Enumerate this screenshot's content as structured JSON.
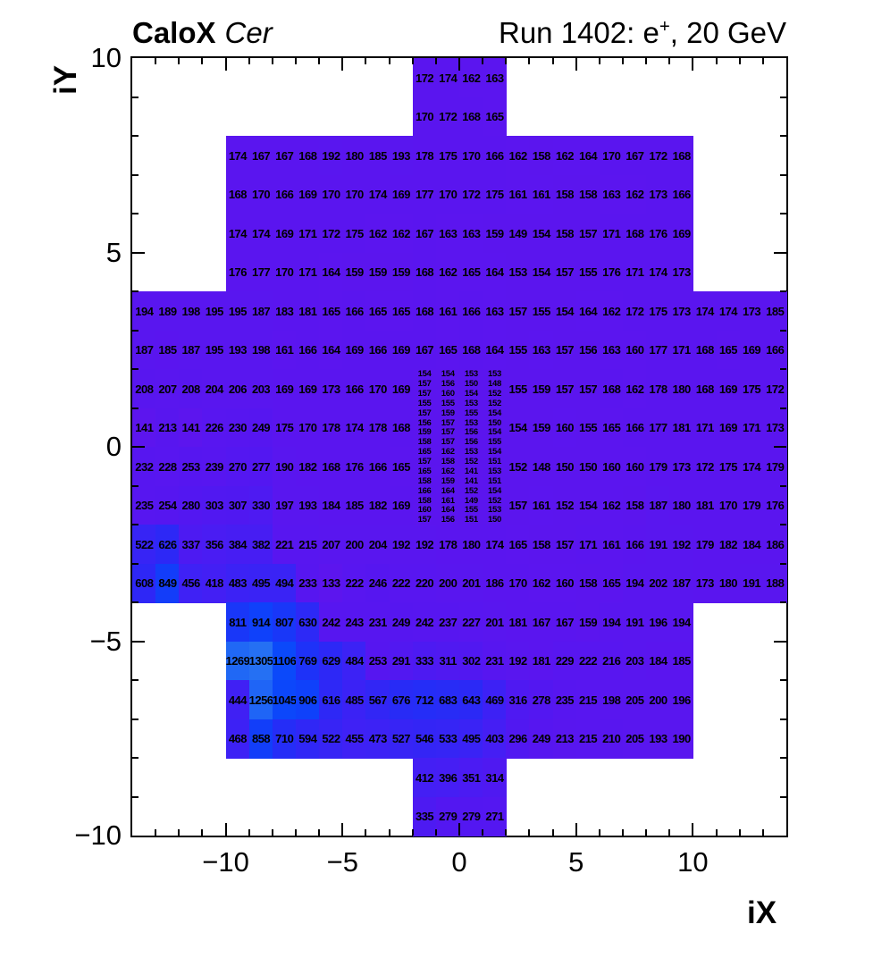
{
  "header": {
    "title_bold": "CaloX",
    "title_italic": "Cer",
    "run_title": {
      "prefix": "Run 1402: e",
      "sup": "+",
      "suffix": ", 20 GeV"
    }
  },
  "chart_data": {
    "type": "heatmap",
    "xlabel": "iX",
    "ylabel": "iY",
    "xlim": [
      -14,
      14
    ],
    "ylim": [
      -10,
      10
    ],
    "xticks": [
      -10,
      -5,
      0,
      5,
      10
    ],
    "yticks": [
      -10,
      -5,
      0,
      5,
      10
    ],
    "minor_tick_step": 1,
    "background": "#ffffff",
    "frame_color": "#000000",
    "color_stops": [
      [
        133,
        "#5c15ee"
      ],
      [
        240,
        "#5716f0"
      ],
      [
        300,
        "#5118f1"
      ],
      [
        360,
        "#4a1cf3"
      ],
      [
        420,
        "#431ff4"
      ],
      [
        480,
        "#3c22f5"
      ],
      [
        540,
        "#3525f5"
      ],
      [
        600,
        "#2f27f6"
      ],
      [
        660,
        "#2a2af6"
      ],
      [
        720,
        "#242ef7"
      ],
      [
        780,
        "#1d33f8"
      ],
      [
        850,
        "#133df9"
      ],
      [
        950,
        "#0c44fa"
      ],
      [
        1150,
        "#0b4afa"
      ],
      [
        1230,
        "#1b5ff7"
      ],
      [
        1310,
        "#2671f3"
      ]
    ],
    "rows": [
      {
        "y": 10,
        "x0": -2,
        "v": [
          172,
          174,
          162,
          163
        ]
      },
      {
        "y": 9,
        "x0": -2,
        "v": [
          170,
          172,
          168,
          165
        ]
      },
      {
        "y": 8,
        "x0": -10,
        "v": [
          174,
          167,
          167,
          168,
          192,
          180,
          185,
          193,
          178,
          175,
          170,
          166,
          162,
          158,
          162,
          164,
          170,
          167,
          172,
          168
        ]
      },
      {
        "y": 7,
        "x0": -10,
        "v": [
          168,
          170,
          166,
          169,
          170,
          170,
          174,
          169,
          177,
          170,
          172,
          175,
          161,
          161,
          158,
          158,
          163,
          162,
          173,
          166
        ]
      },
      {
        "y": 6,
        "x0": -10,
        "v": [
          174,
          174,
          169,
          171,
          172,
          175,
          162,
          162,
          167,
          163,
          163,
          159,
          149,
          154,
          158,
          157,
          171,
          168,
          176,
          169
        ]
      },
      {
        "y": 5,
        "x0": -10,
        "v": [
          176,
          177,
          170,
          171,
          164,
          159,
          159,
          159,
          168,
          162,
          165,
          164,
          153,
          154,
          157,
          155,
          176,
          171,
          174,
          173
        ]
      },
      {
        "y": 4,
        "x0": -14,
        "v": [
          194,
          189,
          198,
          195,
          195,
          187,
          183,
          181,
          165,
          166,
          165,
          165,
          168,
          161,
          166,
          163,
          157,
          155,
          154,
          164,
          162,
          172,
          175,
          173,
          174,
          174,
          173,
          185
        ]
      },
      {
        "y": 3,
        "x0": -14,
        "v": [
          187,
          185,
          187,
          195,
          193,
          198,
          161,
          166,
          164,
          169,
          166,
          169,
          167,
          165,
          168,
          164,
          155,
          163,
          157,
          156,
          163,
          160,
          177,
          171,
          168,
          165,
          169,
          166
        ]
      },
      {
        "y": 2,
        "x0": -14,
        "v": [
          208,
          207,
          208,
          204,
          206,
          203,
          169,
          169,
          173,
          166,
          170,
          169
        ]
      },
      {
        "y": 2,
        "x0": 2,
        "v": [
          155,
          159,
          157,
          157,
          168,
          162,
          178,
          180,
          168,
          169,
          175,
          172
        ]
      },
      {
        "y": 1,
        "x0": -14,
        "v": [
          141,
          213,
          141,
          226,
          230,
          249,
          175,
          170,
          178,
          174,
          178,
          168
        ]
      },
      {
        "y": 1,
        "x0": 2,
        "v": [
          154,
          159,
          160,
          155,
          165,
          166,
          177,
          181,
          171,
          169,
          171,
          173
        ]
      },
      {
        "y": 0,
        "x0": -14,
        "v": [
          232,
          228,
          253,
          239,
          270,
          277,
          190,
          182,
          168,
          176,
          166,
          165
        ]
      },
      {
        "y": 0,
        "x0": 2,
        "v": [
          152,
          148,
          150,
          150,
          160,
          160,
          179,
          173,
          172,
          175,
          174,
          179
        ]
      },
      {
        "y": -1,
        "x0": -14,
        "v": [
          235,
          254,
          280,
          303,
          307,
          330,
          197,
          193,
          184,
          185,
          182,
          169
        ]
      },
      {
        "y": -1,
        "x0": 2,
        "v": [
          157,
          161,
          152,
          154,
          162,
          158,
          187,
          180,
          181,
          170,
          179,
          176
        ]
      },
      {
        "y": -2,
        "x0": -14,
        "v": [
          522,
          626,
          337,
          356,
          384,
          382,
          221,
          215,
          207,
          200,
          204,
          192,
          192,
          178,
          180,
          174,
          165,
          158,
          157,
          171,
          161,
          166,
          191,
          192,
          179,
          182,
          184,
          186
        ]
      },
      {
        "y": -3,
        "x0": -14,
        "v": [
          608,
          849,
          456,
          418,
          483,
          495,
          494,
          233,
          133,
          222,
          246,
          222,
          220,
          200,
          201,
          186,
          170,
          162,
          160,
          158,
          165,
          194,
          202,
          187,
          173,
          180,
          191,
          188
        ]
      },
      {
        "y": -4,
        "x0": -10,
        "v": [
          811,
          914,
          807,
          630,
          242,
          243,
          231,
          249,
          242,
          237,
          227,
          201,
          181,
          167,
          167,
          159,
          194,
          191,
          196,
          194
        ]
      },
      {
        "y": -5,
        "x0": -10,
        "v": [
          1269,
          1305,
          1106,
          769,
          629,
          484,
          253,
          291,
          333,
          311,
          302,
          231,
          192,
          181,
          229,
          222,
          216,
          203,
          184,
          185
        ]
      },
      {
        "y": -6,
        "x0": -10,
        "v": [
          444,
          1256,
          1045,
          906,
          616,
          485,
          567,
          676,
          712,
          683,
          643,
          469,
          316,
          278,
          235,
          215,
          198,
          205,
          200,
          196
        ]
      },
      {
        "y": -7,
        "x0": -10,
        "v": [
          468,
          858,
          710,
          594,
          522,
          455,
          473,
          527,
          546,
          533,
          495,
          403,
          296,
          249,
          213,
          215,
          210,
          205,
          193,
          190
        ]
      },
      {
        "y": -8,
        "x0": -2,
        "v": [
          412,
          396,
          351,
          314
        ]
      },
      {
        "y": -9,
        "x0": -2,
        "v": [
          335,
          279,
          279,
          271
        ]
      }
    ],
    "fine_grid": {
      "x0": -2,
      "y_top": 2,
      "cell_w": 1,
      "cell_h": 0.25,
      "rows": [
        [
          154,
          154,
          153,
          153
        ],
        [
          157,
          156,
          150,
          148
        ],
        [
          157,
          160,
          154,
          152
        ],
        [
          155,
          155,
          153,
          152
        ],
        [
          157,
          159,
          155,
          154
        ],
        [
          156,
          157,
          153,
          150
        ],
        [
          159,
          157,
          156,
          154
        ],
        [
          158,
          157,
          156,
          155
        ],
        [
          165,
          162,
          153,
          154
        ],
        [
          157,
          158,
          152,
          151
        ],
        [
          165,
          162,
          141,
          153
        ],
        [
          158,
          159,
          141,
          151
        ],
        [
          166,
          164,
          152,
          154
        ],
        [
          158,
          161,
          149,
          152
        ],
        [
          160,
          164,
          155,
          153
        ],
        [
          157,
          156,
          151,
          150
        ]
      ]
    }
  }
}
